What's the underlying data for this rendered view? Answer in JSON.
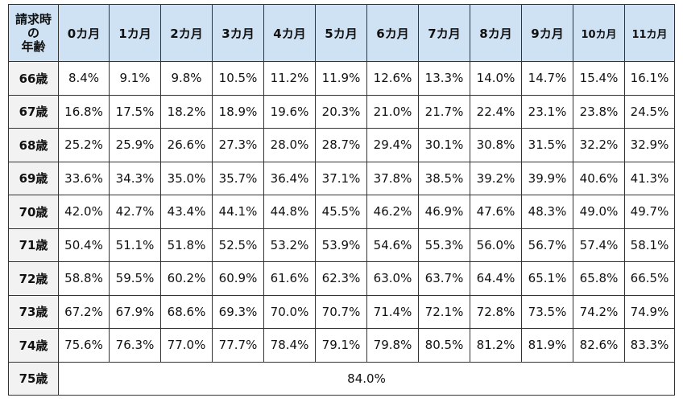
{
  "table": {
    "corner_label": "請求時の年齢",
    "corner_lines": [
      "請求時",
      "の",
      "年齢"
    ],
    "columns": [
      "0カ月",
      "1カ月",
      "2カ月",
      "3カ月",
      "4カ月",
      "5カ月",
      "6カ月",
      "7カ月",
      "8カ月",
      "9カ月",
      "10カ月",
      "11カ月"
    ],
    "rows": [
      {
        "age": "66歳",
        "values": [
          "8.4%",
          "9.1%",
          "9.8%",
          "10.5%",
          "11.2%",
          "11.9%",
          "12.6%",
          "13.3%",
          "14.0%",
          "14.7%",
          "15.4%",
          "16.1%"
        ]
      },
      {
        "age": "67歳",
        "values": [
          "16.8%",
          "17.5%",
          "18.2%",
          "18.9%",
          "19.6%",
          "20.3%",
          "21.0%",
          "21.7%",
          "22.4%",
          "23.1%",
          "23.8%",
          "24.5%"
        ]
      },
      {
        "age": "68歳",
        "values": [
          "25.2%",
          "25.9%",
          "26.6%",
          "27.3%",
          "28.0%",
          "28.7%",
          "29.4%",
          "30.1%",
          "30.8%",
          "31.5%",
          "32.2%",
          "32.9%"
        ]
      },
      {
        "age": "69歳",
        "values": [
          "33.6%",
          "34.3%",
          "35.0%",
          "35.7%",
          "36.4%",
          "37.1%",
          "37.8%",
          "38.5%",
          "39.2%",
          "39.9%",
          "40.6%",
          "41.3%"
        ]
      },
      {
        "age": "70歳",
        "values": [
          "42.0%",
          "42.7%",
          "43.4%",
          "44.1%",
          "44.8%",
          "45.5%",
          "46.2%",
          "46.9%",
          "47.6%",
          "48.3%",
          "49.0%",
          "49.7%"
        ]
      },
      {
        "age": "71歳",
        "values": [
          "50.4%",
          "51.1%",
          "51.8%",
          "52.5%",
          "53.2%",
          "53.9%",
          "54.6%",
          "55.3%",
          "56.0%",
          "56.7%",
          "57.4%",
          "58.1%"
        ]
      },
      {
        "age": "72歳",
        "values": [
          "58.8%",
          "59.5%",
          "60.2%",
          "60.9%",
          "61.6%",
          "62.3%",
          "63.0%",
          "63.7%",
          "64.4%",
          "65.1%",
          "65.8%",
          "66.5%"
        ]
      },
      {
        "age": "73歳",
        "values": [
          "67.2%",
          "67.9%",
          "68.6%",
          "69.3%",
          "70.0%",
          "70.7%",
          "71.4%",
          "72.1%",
          "72.8%",
          "73.5%",
          "74.2%",
          "74.9%"
        ]
      },
      {
        "age": "74歳",
        "values": [
          "75.6%",
          "76.3%",
          "77.0%",
          "77.7%",
          "78.4%",
          "79.1%",
          "79.8%",
          "80.5%",
          "81.2%",
          "81.9%",
          "82.6%",
          "83.3%"
        ]
      }
    ],
    "last_row": {
      "age": "75歳",
      "value": "84.0%"
    }
  },
  "colors": {
    "header_bg": "#cfe2f3",
    "age_cell_bg": "#f2f2f2",
    "border": "#333333"
  }
}
